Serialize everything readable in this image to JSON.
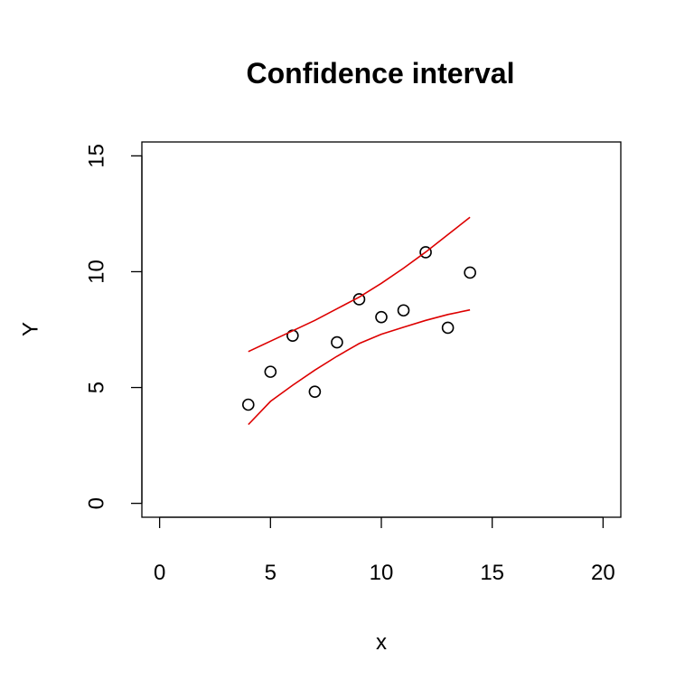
{
  "chart_data": {
    "type": "scatter",
    "title": "Confidence interval",
    "xlabel": "x",
    "ylabel": "Y",
    "xlim": [
      -0.8,
      20.8
    ],
    "ylim": [
      -0.6,
      15.6
    ],
    "x_ticks": [
      0,
      5,
      10,
      15,
      20
    ],
    "y_ticks": [
      0,
      5,
      10,
      15
    ],
    "grid": false,
    "legend": "none",
    "series": [
      {
        "kind": "points",
        "color": "#000000",
        "x": [
          4,
          5,
          6,
          7,
          8,
          9,
          10,
          11,
          12,
          13,
          14
        ],
        "y": [
          4.26,
          5.68,
          7.24,
          4.82,
          6.95,
          8.81,
          8.04,
          8.33,
          10.84,
          7.58,
          9.96
        ]
      },
      {
        "kind": "line",
        "color": "#dd0000",
        "x": [
          4,
          5,
          6,
          7,
          8,
          9,
          10,
          11,
          12,
          13,
          14
        ],
        "y": [
          6.55,
          7.0,
          7.45,
          7.9,
          8.4,
          8.9,
          9.5,
          10.15,
          10.85,
          11.6,
          12.35
        ]
      },
      {
        "kind": "line",
        "color": "#dd0000",
        "x": [
          4,
          5,
          6,
          7,
          8,
          9,
          10,
          11,
          12,
          13,
          14
        ],
        "y": [
          3.4,
          4.4,
          5.1,
          5.75,
          6.35,
          6.9,
          7.3,
          7.6,
          7.9,
          8.15,
          8.35
        ]
      }
    ]
  }
}
